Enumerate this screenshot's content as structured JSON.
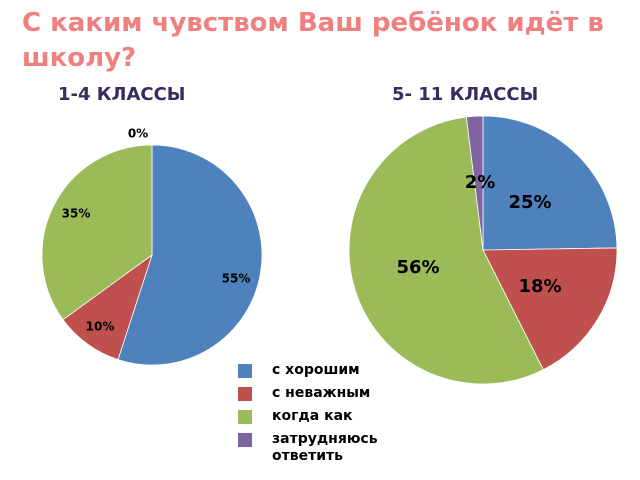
{
  "title": "С каким чувством Ваш ребёнок идёт в школу?",
  "chart_data": [
    {
      "type": "pie",
      "title": "1-4 КЛАССЫ",
      "categories": [
        "с хорошим",
        "с неважным",
        "когда как",
        "затрудняюсь ответить"
      ],
      "values": [
        55,
        10,
        35,
        0
      ],
      "labels": [
        "55%",
        "10%",
        "35%",
        "0%"
      ],
      "colors": [
        "#4f81bd",
        "#c0504d",
        "#9bbb59",
        "#8064a2"
      ]
    },
    {
      "type": "pie",
      "title": "5- 11 КЛАССЫ",
      "categories": [
        "с хорошим",
        "с неважным",
        "когда как",
        "затрудняюсь ответить"
      ],
      "values": [
        25,
        18,
        56,
        2
      ],
      "labels": [
        "25%",
        "18%",
        "56%",
        "2%"
      ],
      "colors": [
        "#4f81bd",
        "#c0504d",
        "#9bbb59",
        "#8064a2"
      ]
    }
  ],
  "legend": {
    "items": [
      {
        "label": "с хорошим",
        "color": "#4f81bd"
      },
      {
        "label": "с неважным",
        "color": "#c0504d"
      },
      {
        "label": "когда как",
        "color": "#9bbb59"
      },
      {
        "label": "затрудняюсь ответить",
        "color": "#8064a2"
      }
    ]
  }
}
